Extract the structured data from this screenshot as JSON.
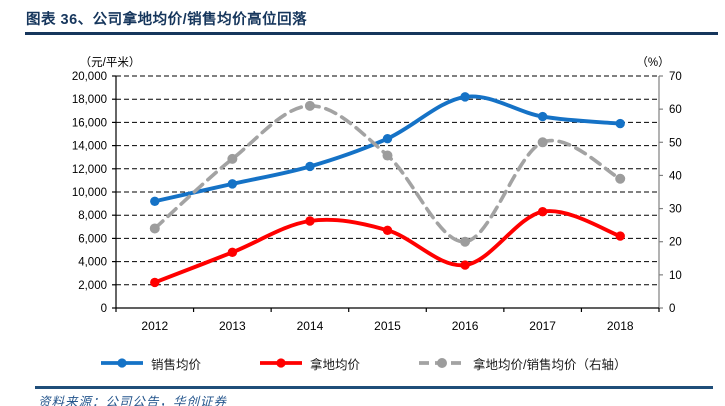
{
  "header": {
    "title": "图表 36、公司拿地均价/销售均价高位回落"
  },
  "chart_data": {
    "type": "line",
    "title": "公司拿地均价/销售均价高位回落",
    "categories": [
      "2012",
      "2013",
      "2014",
      "2015",
      "2016",
      "2017",
      "2018"
    ],
    "series": [
      {
        "name": "销售均价",
        "axis": "left",
        "color": "#1572C6",
        "line_style": "solid",
        "marker": "circle",
        "values": [
          9200,
          10700,
          12200,
          14600,
          18200,
          16500,
          15900
        ]
      },
      {
        "name": "拿地均价",
        "axis": "left",
        "color": "#FF0000",
        "line_style": "solid",
        "marker": "circle",
        "values": [
          2200,
          4800,
          7500,
          6700,
          3700,
          8300,
          6200
        ]
      },
      {
        "name": "拿地均价/销售均价（右轴）",
        "axis": "right",
        "color": "#A3A3A3",
        "line_style": "dashed",
        "marker": "circle",
        "values": [
          24,
          45,
          61,
          46,
          20,
          50,
          39
        ]
      }
    ],
    "left_axis": {
      "unit": "（元/平米）",
      "min": 0,
      "max": 20000,
      "step": 2000
    },
    "right_axis": {
      "unit": "（%）",
      "min": 0,
      "max": 70,
      "step": 10
    },
    "grid": "horizontal dashed black",
    "legend_position": "bottom",
    "colors": {
      "navy_accent": "#16365C",
      "grid_line": "#000000",
      "right_axis_line": "#808080"
    }
  },
  "footer": {
    "source": "资料来源：公司公告，华创证券"
  }
}
